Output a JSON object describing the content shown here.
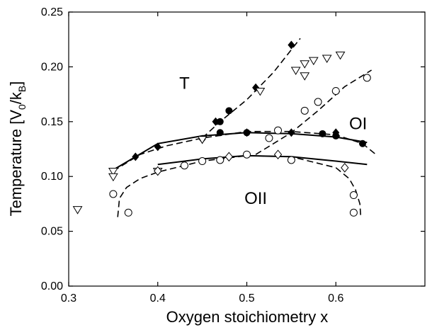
{
  "chart_data": {
    "type": "scatter",
    "xlabel": "Oxygen stoichiometry x",
    "ylabel": "Temperature [V",
    "ylabel_sub0": "0",
    "ylabel_mid": "/k",
    "ylabel_sub1": "B",
    "ylabel_end": "]",
    "xlim": [
      0.3,
      0.7
    ],
    "ylim": [
      0.0,
      0.25
    ],
    "xticks": [
      0.3,
      0.4,
      0.5,
      0.6
    ],
    "xtick_labels": [
      "0.3",
      "0.4",
      "0.5",
      "0.6"
    ],
    "yticks": [
      0.0,
      0.05,
      0.1,
      0.15,
      0.2,
      0.25
    ],
    "ytick_labels": [
      "0.00",
      "0.05",
      "0.10",
      "0.15",
      "0.20",
      "0.25"
    ],
    "grid": false,
    "region_labels": [
      {
        "text": "T",
        "x": 0.43,
        "y": 0.18
      },
      {
        "text": "OI",
        "x": 0.625,
        "y": 0.143
      },
      {
        "text": "OII",
        "x": 0.51,
        "y": 0.075
      }
    ],
    "series": [
      {
        "marker": "filled-diamond",
        "points": [
          [
            0.375,
            0.118
          ],
          [
            0.4,
            0.127
          ],
          [
            0.45,
            0.134
          ],
          [
            0.5,
            0.14
          ],
          [
            0.55,
            0.14
          ],
          [
            0.6,
            0.14
          ],
          [
            0.465,
            0.15
          ],
          [
            0.51,
            0.181
          ],
          [
            0.55,
            0.22
          ]
        ]
      },
      {
        "marker": "filled-circle",
        "points": [
          [
            0.47,
            0.14
          ],
          [
            0.5,
            0.14
          ],
          [
            0.585,
            0.139
          ],
          [
            0.6,
            0.137
          ],
          [
            0.63,
            0.13
          ],
          [
            0.47,
            0.15
          ],
          [
            0.48,
            0.16
          ]
        ]
      },
      {
        "marker": "open-triangle",
        "points": [
          [
            0.31,
            0.07
          ],
          [
            0.35,
            0.105
          ],
          [
            0.35,
            0.1
          ],
          [
            0.4,
            0.105
          ],
          [
            0.45,
            0.134
          ],
          [
            0.515,
            0.178
          ],
          [
            0.555,
            0.197
          ],
          [
            0.565,
            0.192
          ],
          [
            0.565,
            0.203
          ],
          [
            0.575,
            0.206
          ],
          [
            0.59,
            0.208
          ],
          [
            0.605,
            0.211
          ]
        ]
      },
      {
        "marker": "open-circle",
        "points": [
          [
            0.35,
            0.084
          ],
          [
            0.367,
            0.067
          ],
          [
            0.43,
            0.11
          ],
          [
            0.45,
            0.114
          ],
          [
            0.47,
            0.115
          ],
          [
            0.5,
            0.12
          ],
          [
            0.55,
            0.115
          ],
          [
            0.535,
            0.142
          ],
          [
            0.525,
            0.135
          ],
          [
            0.565,
            0.16
          ],
          [
            0.58,
            0.168
          ],
          [
            0.6,
            0.178
          ],
          [
            0.635,
            0.19
          ],
          [
            0.62,
            0.083
          ],
          [
            0.62,
            0.067
          ]
        ]
      },
      {
        "marker": "open-diamond",
        "points": [
          [
            0.4,
            0.105
          ],
          [
            0.48,
            0.118
          ],
          [
            0.535,
            0.12
          ],
          [
            0.61,
            0.108
          ]
        ]
      }
    ],
    "solid_curves": [
      {
        "points": [
          [
            0.35,
            0.106
          ],
          [
            0.4,
            0.13
          ],
          [
            0.45,
            0.137
          ],
          [
            0.5,
            0.14
          ],
          [
            0.55,
            0.139
          ],
          [
            0.6,
            0.136
          ],
          [
            0.635,
            0.131
          ]
        ]
      },
      {
        "points": [
          [
            0.4,
            0.111
          ],
          [
            0.45,
            0.116
          ],
          [
            0.5,
            0.119
          ],
          [
            0.55,
            0.118
          ],
          [
            0.6,
            0.114
          ],
          [
            0.635,
            0.111
          ]
        ]
      }
    ],
    "dashed_curves": [
      {
        "points": [
          [
            0.35,
            0.105
          ],
          [
            0.38,
            0.12
          ],
          [
            0.41,
            0.128
          ],
          [
            0.45,
            0.135
          ],
          [
            0.5,
            0.141
          ],
          [
            0.55,
            0.141
          ],
          [
            0.6,
            0.138
          ],
          [
            0.63,
            0.13
          ],
          [
            0.645,
            0.12
          ]
        ]
      },
      {
        "points": [
          [
            0.355,
            0.063
          ],
          [
            0.357,
            0.08
          ],
          [
            0.365,
            0.09
          ],
          [
            0.38,
            0.098
          ],
          [
            0.4,
            0.104
          ],
          [
            0.45,
            0.114
          ],
          [
            0.5,
            0.119
          ],
          [
            0.55,
            0.118
          ],
          [
            0.6,
            0.108
          ],
          [
            0.615,
            0.098
          ],
          [
            0.622,
            0.088
          ],
          [
            0.627,
            0.075
          ],
          [
            0.628,
            0.062
          ]
        ]
      },
      {
        "points": [
          [
            0.45,
            0.135
          ],
          [
            0.47,
            0.15
          ],
          [
            0.5,
            0.17
          ],
          [
            0.53,
            0.195
          ],
          [
            0.56,
            0.226
          ]
        ]
      },
      {
        "points": [
          [
            0.51,
            0.12
          ],
          [
            0.55,
            0.14
          ],
          [
            0.58,
            0.16
          ],
          [
            0.61,
            0.182
          ],
          [
            0.64,
            0.197
          ]
        ]
      }
    ]
  }
}
